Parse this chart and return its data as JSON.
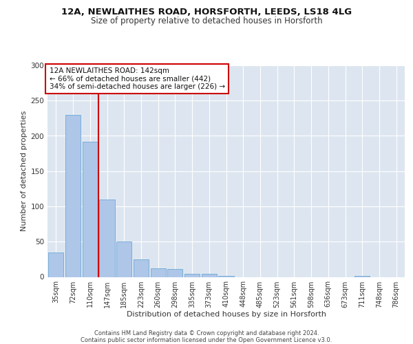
{
  "title_line1": "12A, NEWLAITHES ROAD, HORSFORTH, LEEDS, LS18 4LG",
  "title_line2": "Size of property relative to detached houses in Horsforth",
  "xlabel": "Distribution of detached houses by size in Horsforth",
  "ylabel": "Number of detached properties",
  "categories": [
    "35sqm",
    "72sqm",
    "110sqm",
    "147sqm",
    "185sqm",
    "223sqm",
    "260sqm",
    "298sqm",
    "335sqm",
    "373sqm",
    "410sqm",
    "448sqm",
    "485sqm",
    "523sqm",
    "561sqm",
    "598sqm",
    "636sqm",
    "673sqm",
    "711sqm",
    "748sqm",
    "786sqm"
  ],
  "bar_heights": [
    35,
    230,
    192,
    110,
    50,
    25,
    12,
    11,
    4,
    4,
    1,
    0,
    0,
    0,
    0,
    0,
    0,
    0,
    1,
    0,
    0
  ],
  "bar_color": "#aec6e8",
  "bar_edgecolor": "#5a9fd4",
  "vline_x_index": 3,
  "vline_color": "#cc0000",
  "annotation_text": "12A NEWLAITHES ROAD: 142sqm\n← 66% of detached houses are smaller (442)\n34% of semi-detached houses are larger (226) →",
  "annotation_box_color": "#ffffff",
  "annotation_box_edgecolor": "#cc0000",
  "ylim": [
    0,
    300
  ],
  "yticks": [
    0,
    50,
    100,
    150,
    200,
    250,
    300
  ],
  "background_color": "#dde6f0",
  "footer_text": "Contains HM Land Registry data © Crown copyright and database right 2024.\nContains public sector information licensed under the Open Government Licence v3.0.",
  "title_fontsize": 9.5,
  "subtitle_fontsize": 8.5,
  "tick_fontsize": 7,
  "ylabel_fontsize": 8,
  "xlabel_fontsize": 8,
  "footer_fontsize": 6,
  "annotation_fontsize": 7.5
}
